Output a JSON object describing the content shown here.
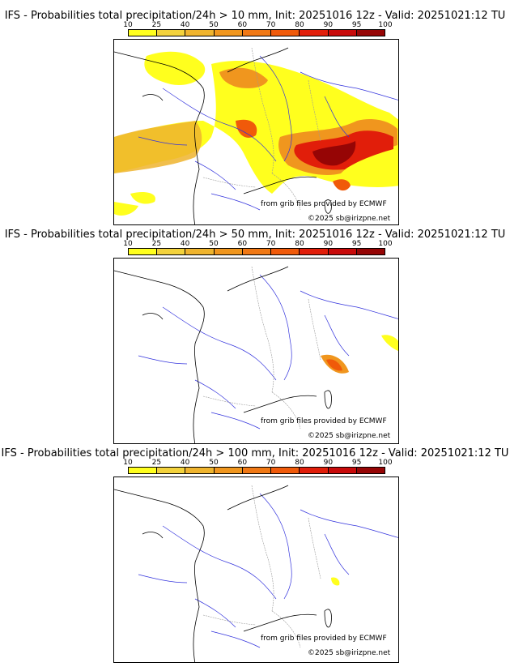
{
  "colorbar": {
    "levels": [
      "10",
      "25",
      "40",
      "50",
      "60",
      "70",
      "80",
      "90",
      "95",
      "100"
    ],
    "colors": [
      "#ffff1e",
      "#f3d23c",
      "#efb42e",
      "#f0961e",
      "#f07814",
      "#f05a0a",
      "#e11e0a",
      "#c80a0a",
      "#960505",
      "#640000"
    ]
  },
  "panels": [
    {
      "title": "IFS - Probabilities total precipitation/24h > 10 mm, Init: 20251016 12z - Valid: 20251021:12 TU",
      "source": "from grib files provided by ECMWF",
      "copyright": "©2025 sb@irizpne.net"
    },
    {
      "title": "IFS - Probabilities total precipitation/24h > 50 mm, Init: 20251016 12z - Valid: 20251021:12 TU",
      "source": "from grib files provided by ECMWF",
      "copyright": "©2025 sb@irizpne.net"
    },
    {
      "title": "IFS - Probabilities total precipitation/24h > 100 mm, Init: 20251016 12z - Valid: 20251021:12 TU",
      "source": "from grib files provided by ECMWF",
      "copyright": "©2025 sb@irizpne.net"
    }
  ],
  "colors": {
    "coast": "#000000",
    "rivers": "#3333dd",
    "borders": "#999999"
  }
}
